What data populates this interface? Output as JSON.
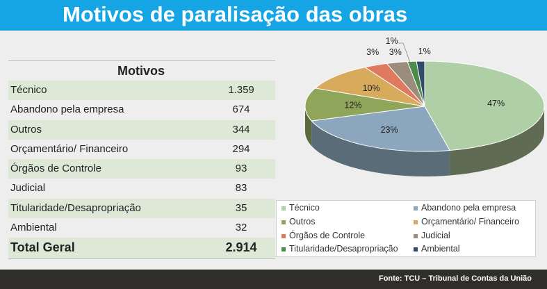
{
  "header": {
    "title": "Motivos de paralisação das obras"
  },
  "table": {
    "column_header": "Motivos",
    "rows": [
      {
        "label": "Técnico",
        "value": "1.359"
      },
      {
        "label": "Abandono pela empresa",
        "value": "674"
      },
      {
        "label": "Outros",
        "value": "344"
      },
      {
        "label": "Orçamentário/ Financeiro",
        "value": "294"
      },
      {
        "label": "Órgãos de Controle",
        "value": "93"
      },
      {
        "label": "Judicial",
        "value": "83"
      },
      {
        "label": "Titularidade/Desapropriação",
        "value": "35"
      },
      {
        "label": "Ambiental",
        "value": "32"
      }
    ],
    "total_label": "Total Geral",
    "total_value": "2.914"
  },
  "chart_data": {
    "type": "pie",
    "title": "",
    "legend_placement": "bottom",
    "categories": [
      "Técnico",
      "Abandono pela empresa",
      "Outros",
      "Orçamentário/ Financeiro",
      "Órgãos de Controle",
      "Judicial",
      "Titularidade/Desapropriação",
      "Ambiental"
    ],
    "values": [
      1359,
      674,
      344,
      294,
      93,
      83,
      35,
      32
    ],
    "percent_labels": [
      "47%",
      "23%",
      "12%",
      "10%",
      "3%",
      "3%",
      "1%",
      "1%"
    ],
    "colors": [
      "#afd0a6",
      "#8ca7bd",
      "#8fa65a",
      "#d7aa5c",
      "#e07a5f",
      "#9a8d7b",
      "#4b8b4c",
      "#2f4d6b"
    ],
    "side_colors": [
      "#5f6b52",
      "#5b6c79",
      "#5b6a3c",
      "#8a6e3c",
      "#8f4f3d",
      "#625a4f",
      "#315a32",
      "#1f3346"
    ]
  },
  "footer": {
    "source": "Fonte: TCU – Tribunal de Contas da União"
  }
}
